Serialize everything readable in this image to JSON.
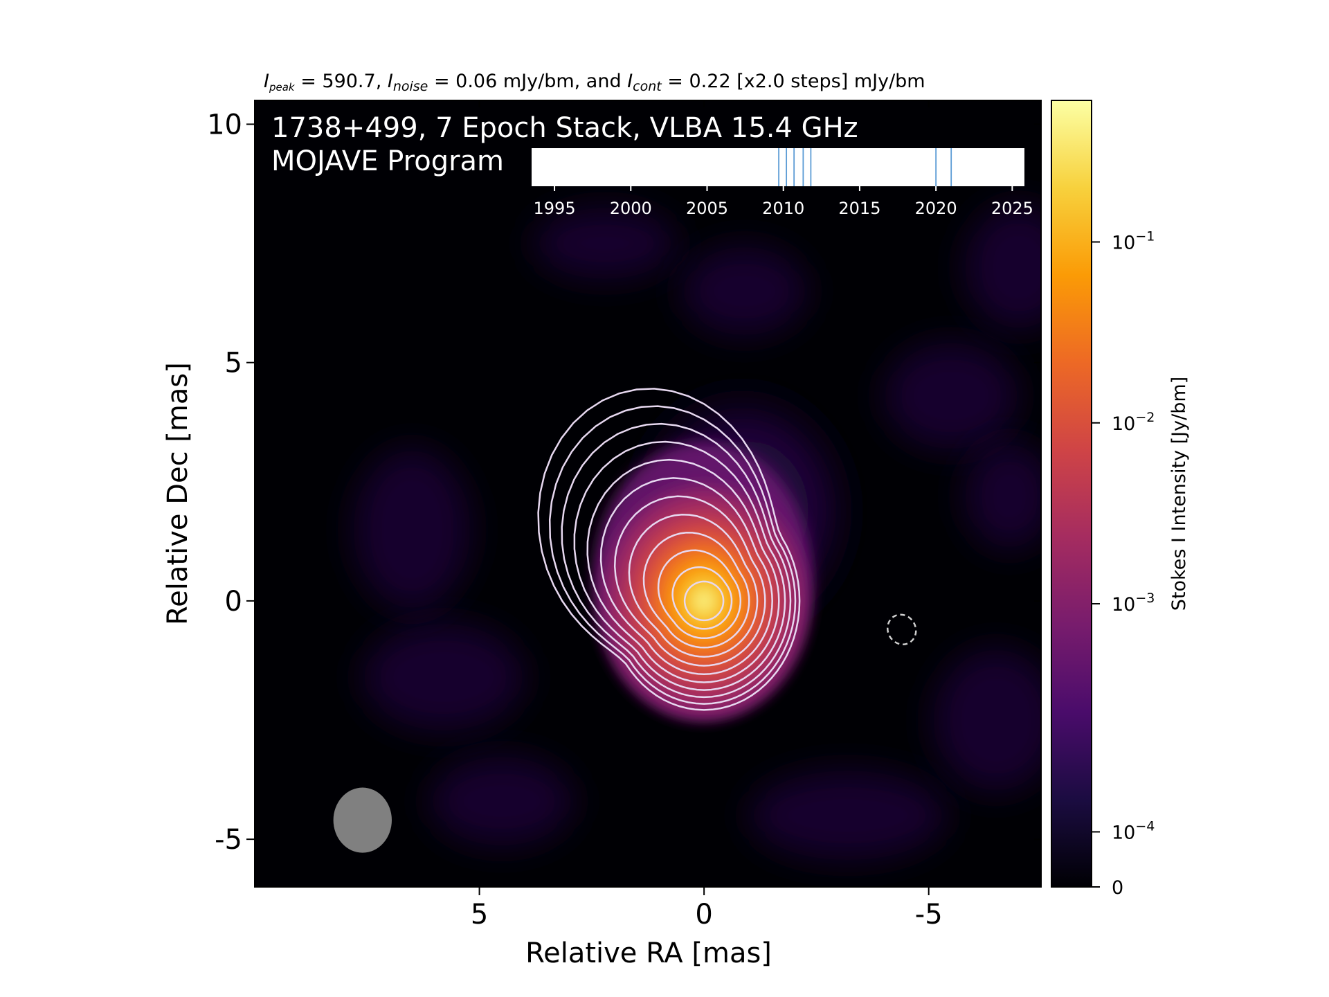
{
  "chart_data": {
    "type": "heatmap",
    "caption": {
      "peak_var": "I",
      "peak_sub": "peak",
      "peak_text": " = 590.7, ",
      "noise_var": "I",
      "noise_sub": "noise",
      "noise_text": " = 0.06 mJy/bm, and ",
      "cont_var": "I",
      "cont_sub": "cont",
      "cont_text": " = 0.22 [x2.0 steps] mJy/bm"
    },
    "title_line1": "1738+499, 7 Epoch Stack, VLBA 15.4 GHz",
    "title_line2": "MOJAVE Program",
    "xlabel": "Relative RA [mas]",
    "ylabel": "Relative Dec [mas]",
    "xlim": [
      10,
      -7.5
    ],
    "ylim": [
      -6,
      10.5
    ],
    "xticks": [
      5,
      0,
      -5
    ],
    "yticks": [
      10,
      5,
      0,
      -5
    ],
    "colorbar": {
      "label": "Stokes I Intensity [Jy/bm]",
      "scale": "log",
      "ticks": [
        {
          "base": "0",
          "exp": "",
          "level": 0.0
        },
        {
          "base": "10",
          "exp": "−4",
          "level": 0.07
        },
        {
          "base": "10",
          "exp": "−3",
          "level": 0.36
        },
        {
          "base": "10",
          "exp": "−2",
          "level": 0.59
        },
        {
          "base": "10",
          "exp": "−1",
          "level": 0.82
        }
      ],
      "colors": [
        "#000004",
        "#1b0c41",
        "#4a0c6b",
        "#781c6d",
        "#a52c60",
        "#cf4446",
        "#ed6925",
        "#fb9b06",
        "#f7d13d",
        "#fcffa4"
      ]
    },
    "epoch_inset": {
      "xticks": [
        1995,
        2000,
        2005,
        2010,
        2015,
        2020,
        2025
      ],
      "xlim": [
        1993.5,
        2025.8
      ],
      "epochs": [
        2009.7,
        2010.2,
        2010.7,
        2011.3,
        2011.8,
        2020.0,
        2021.0
      ],
      "line_color": "#5b9bd5"
    },
    "source": {
      "peak_x": 0,
      "peak_y": 0,
      "jet_direction": "north-east"
    },
    "contour_count": 12,
    "contour_color": "#e7d8f0",
    "beam": {
      "x": 7.6,
      "y": -4.6,
      "width_mas": 1.3,
      "height_mas": 1.45,
      "color": "#808080"
    },
    "dashed_ellipse": {
      "x": -4.4,
      "y": -0.6,
      "color": "#d0d0d0"
    }
  }
}
